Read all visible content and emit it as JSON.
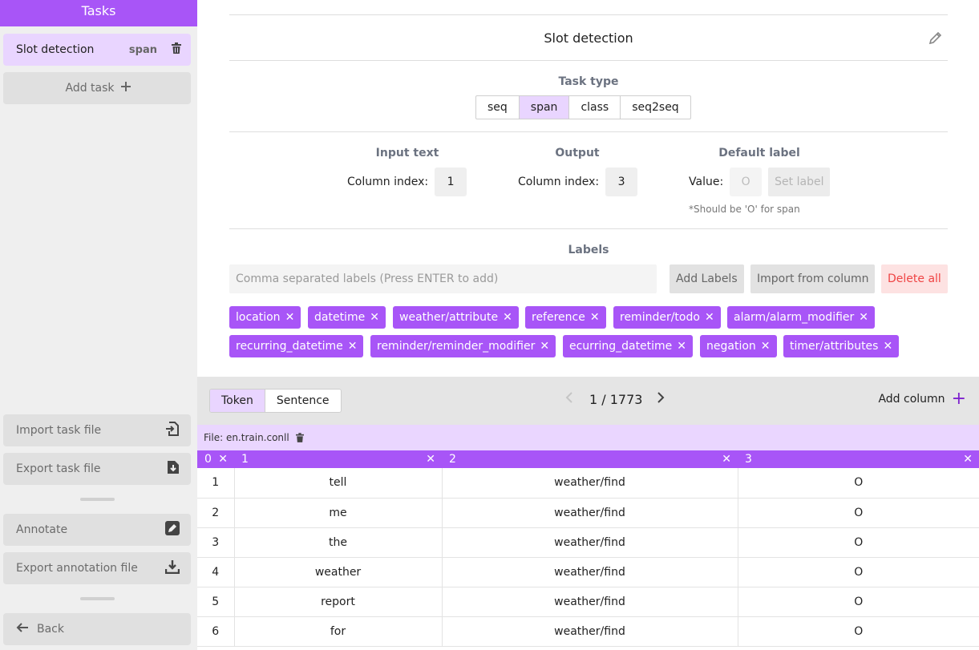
{
  "sidebar": {
    "header": "Tasks",
    "task": {
      "name": "Slot detection",
      "badge": "span"
    },
    "add_task": "Add task",
    "import_task": "Import task file",
    "export_task": "Export task file",
    "annotate": "Annotate",
    "export_annotation": "Export annotation file",
    "back": "Back"
  },
  "main": {
    "title": "Slot detection",
    "task_type": {
      "label": "Task type",
      "options": [
        "seq",
        "span",
        "class",
        "seq2seq"
      ],
      "selected": "span"
    },
    "input_text": {
      "label": "Input text",
      "field": "Column index:",
      "value": "1"
    },
    "output": {
      "label": "Output",
      "field": "Column index:",
      "value": "3"
    },
    "default_label": {
      "label": "Default label",
      "field": "Value:",
      "placeholder": "O",
      "button": "Set label",
      "note": "*Should be 'O' for span"
    },
    "labels": {
      "label": "Labels",
      "placeholder": "Comma separated labels (Press ENTER to add)",
      "add_button": "Add Labels",
      "import_button": "Import from column",
      "delete_button": "Delete all",
      "tags": [
        "location",
        "datetime",
        "weather/attribute",
        "reference",
        "reminder/todo",
        "alarm/alarm_modifier",
        "recurring_datetime",
        "reminder/reminder_modifier",
        "ecurring_datetime",
        "negation",
        "timer/attributes"
      ]
    }
  },
  "toolbar": {
    "views": [
      "Token",
      "Sentence"
    ],
    "active_view": "Token",
    "page": "1 / 1773",
    "add_column": "Add column"
  },
  "file": {
    "label": "File: en.train.conll"
  },
  "table": {
    "columns": [
      "0",
      "1",
      "2",
      "3"
    ],
    "rows": [
      [
        "1",
        "tell",
        "weather/find",
        "O"
      ],
      [
        "2",
        "me",
        "weather/find",
        "O"
      ],
      [
        "3",
        "the",
        "weather/find",
        "O"
      ],
      [
        "4",
        "weather",
        "weather/find",
        "O"
      ],
      [
        "5",
        "report",
        "weather/find",
        "O"
      ],
      [
        "6",
        "for",
        "weather/find",
        "O"
      ]
    ]
  },
  "colors": {
    "accent": "#a855f7",
    "accent_light": "#e9d5ff",
    "danger": "#ef4444"
  }
}
